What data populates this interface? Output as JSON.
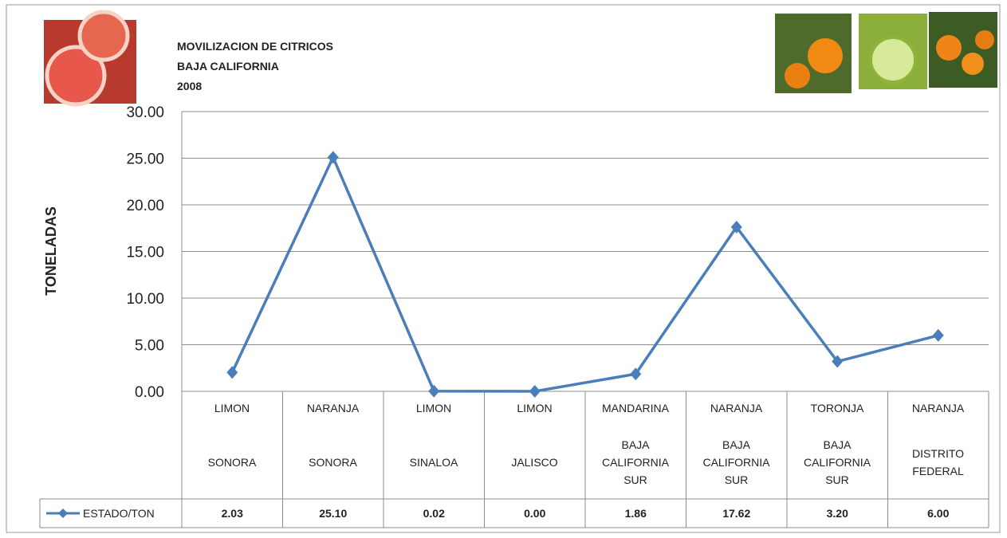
{
  "chart_data": {
    "type": "line",
    "title_lines": [
      "MOVILIZACION DE CITRICOS",
      "BAJA CALIFORNIA",
      "2008"
    ],
    "y_label": "TONELADAS",
    "categories": [
      {
        "product": "LIMON",
        "state": "SONORA"
      },
      {
        "product": "NARANJA",
        "state": "SONORA"
      },
      {
        "product": "LIMON",
        "state": "SINALOA"
      },
      {
        "product": "LIMON",
        "state": "JALISCO"
      },
      {
        "product": "MANDARINA",
        "state": "BAJA CALIFORNIA SUR"
      },
      {
        "product": "NARANJA",
        "state": "BAJA CALIFORNIA SUR"
      },
      {
        "product": "TORONJA",
        "state": "BAJA CALIFORNIA SUR"
      },
      {
        "product": "NARANJA",
        "state": "DISTRITO FEDERAL"
      }
    ],
    "series": [
      {
        "name": "ESTADO/TON",
        "color": "#4a7ebb",
        "values": [
          2.03,
          25.1,
          0.02,
          0.0,
          1.86,
          17.62,
          3.2,
          6.0
        ],
        "value_labels": [
          "2.03",
          "25.10",
          "0.02",
          "0.00",
          "1.86",
          "17.62",
          "3.20",
          "6.00"
        ]
      }
    ],
    "ylim": [
      0,
      30
    ],
    "yticks": [
      {
        "value": 0,
        "label": "0.00"
      },
      {
        "value": 5,
        "label": "5.00"
      },
      {
        "value": 10,
        "label": "10.00"
      },
      {
        "value": 15,
        "label": "15.00"
      },
      {
        "value": 20,
        "label": "20.00"
      },
      {
        "value": 25,
        "label": "25.00"
      },
      {
        "value": 30,
        "label": "30.00"
      }
    ],
    "grid": true
  }
}
